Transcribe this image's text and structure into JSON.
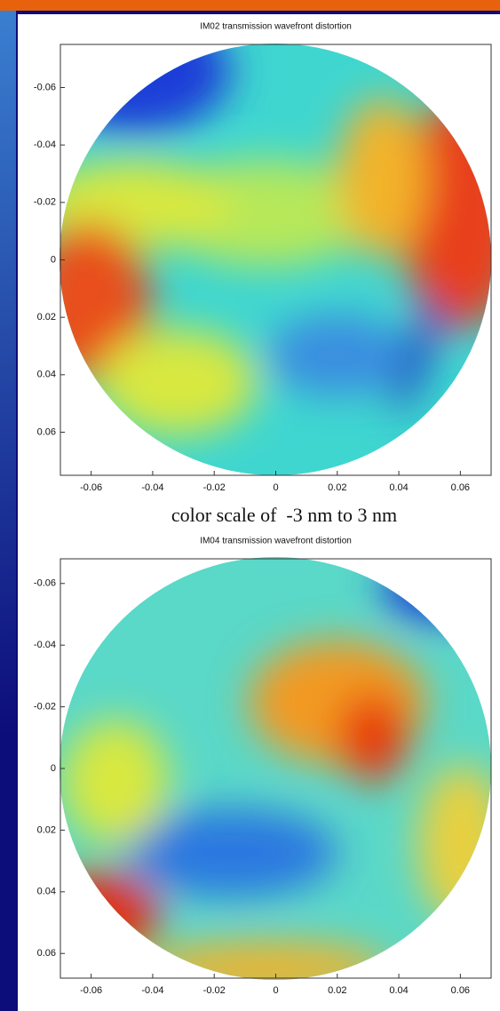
{
  "slide": {
    "caption": "color scale of  -3 nm to 3 nm"
  },
  "chart_data": [
    {
      "type": "heatmap",
      "title": "IM02 transmission wavefront distortion",
      "xlim": [
        -0.07,
        0.07
      ],
      "ylim": [
        -0.075,
        0.075
      ],
      "y_reversed": true,
      "xticks": [
        -0.06,
        -0.04,
        -0.02,
        0,
        0.02,
        0.04,
        0.06
      ],
      "yticks": [
        -0.06,
        -0.04,
        -0.02,
        0,
        0.02,
        0.04,
        0.06
      ]
    },
    {
      "type": "heatmap",
      "title": "IM04 transmission wavefront distortion",
      "xlim": [
        -0.07,
        0.07
      ],
      "ylim": [
        -0.068,
        0.068
      ],
      "y_reversed": true,
      "xticks": [
        -0.06,
        -0.04,
        -0.02,
        0,
        0.02,
        0.04,
        0.06
      ],
      "yticks": [
        -0.06,
        -0.04,
        -0.02,
        0,
        0.02,
        0.04,
        0.06
      ]
    }
  ]
}
